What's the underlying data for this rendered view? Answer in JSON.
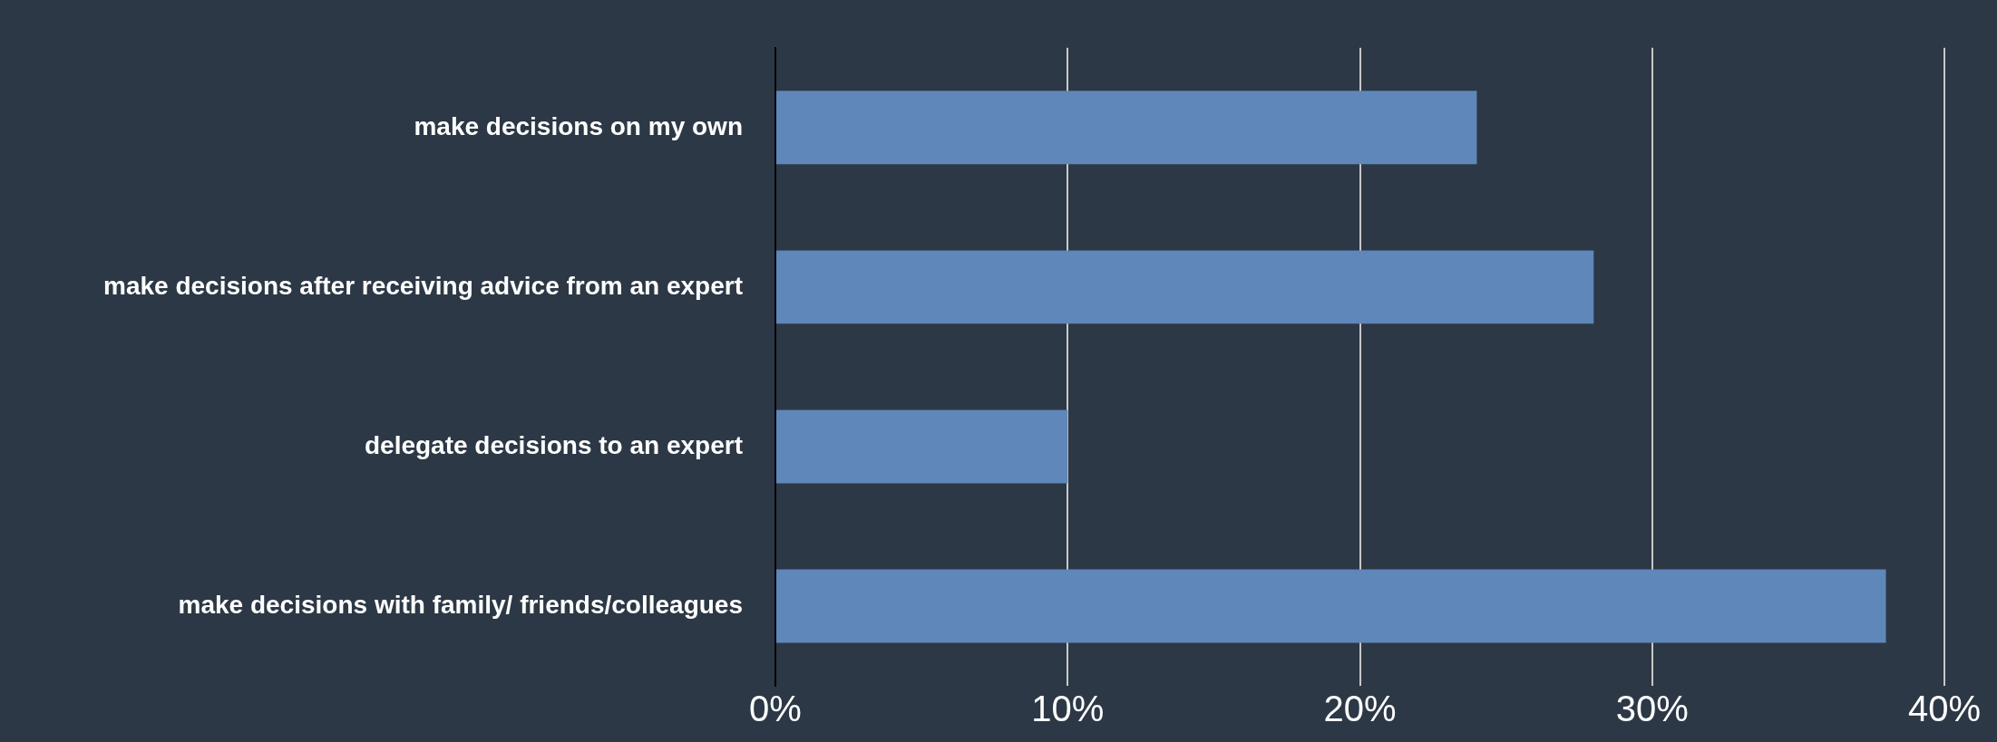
{
  "chart_data": {
    "type": "bar",
    "orientation": "horizontal",
    "categories": [
      "make decisions on my own",
      "make decisions after receiving advice from an expert",
      "delegate decisions to an expert",
      "make decisions with family/ friends/colleagues"
    ],
    "values": [
      24,
      28,
      10,
      38
    ],
    "color": "#5f87ba",
    "xlim": [
      0,
      40
    ],
    "xticks": [
      {
        "value": 0,
        "label": "0%"
      },
      {
        "value": 10,
        "label": "10%"
      },
      {
        "value": 20,
        "label": "20%"
      },
      {
        "value": 30,
        "label": "30%"
      },
      {
        "value": 40,
        "label": "40%"
      }
    ],
    "grid": "x",
    "legend": false
  }
}
